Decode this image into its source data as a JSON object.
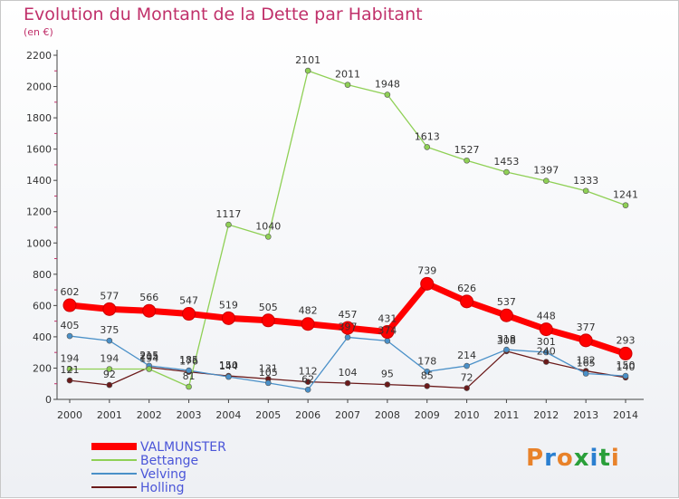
{
  "title": "Evolution du Montant de la Dette par Habitant",
  "subtitle": "(en €)",
  "logo": {
    "text": "Proxiti",
    "colors": [
      "#e8822a",
      "#2a7fd0",
      "#e8822a",
      "#2a9f3a",
      "#2a7fd0",
      "#2a9f3a",
      "#e8822a"
    ]
  },
  "chart_data": {
    "type": "line",
    "x": [
      "2000",
      "2001",
      "2002",
      "2003",
      "2004",
      "2005",
      "2006",
      "2007",
      "2008",
      "2009",
      "2010",
      "2011",
      "2012",
      "2013",
      "2014"
    ],
    "ylim": [
      0,
      2200
    ],
    "yticks": [
      0,
      200,
      400,
      600,
      800,
      1000,
      1200,
      1400,
      1600,
      1800,
      2000,
      2200
    ],
    "grid": false,
    "legend_position": "bottom-left",
    "series": [
      {
        "name": "Holling",
        "color": "#6b1a1a",
        "values": [
          121,
          92,
          205,
          176,
          150,
          131,
          112,
          104,
          95,
          85,
          72,
          308,
          240,
          182,
          140
        ]
      },
      {
        "name": "Velving",
        "color": "#4a90c8",
        "values": [
          405,
          375,
          215,
          185,
          144,
          105,
          62,
          397,
          374,
          178,
          214,
          318,
          301,
          165,
          150
        ]
      },
      {
        "name": "Bettange",
        "color": "#8fd055",
        "values": [
          194,
          194,
          194,
          81,
          1117,
          1040,
          2101,
          2011,
          1948,
          1613,
          1527,
          1453,
          1397,
          1333,
          1241
        ]
      },
      {
        "name": "VALMUNSTER",
        "color": "#ff0000",
        "values": [
          602,
          577,
          566,
          547,
          519,
          505,
          482,
          457,
          431,
          739,
          626,
          537,
          448,
          377,
          293
        ]
      }
    ]
  }
}
